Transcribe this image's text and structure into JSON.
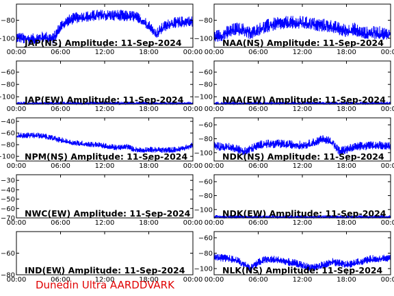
{
  "footer": "Dunedin Ultra AARDDVARK",
  "colors": {
    "trace": "#0000ff",
    "footer": "#e00000",
    "axis": "#000000"
  },
  "chart_data": [
    {
      "type": "line",
      "title": "JAP(NS) Amplitude: 11-Sep-2024",
      "xlabel": "",
      "ylabel": "",
      "x_ticks": [
        "00:00",
        "06:00",
        "12:00",
        "18:00",
        "00:00"
      ],
      "xlim": [
        0,
        24
      ],
      "y_ticks": [
        -80,
        -100
      ],
      "ylim": [
        -110,
        -62
      ],
      "series": [
        {
          "x": [
            0,
            1,
            2,
            3,
            4,
            5,
            6,
            7,
            8,
            9,
            10,
            11,
            12,
            13,
            14,
            15,
            16,
            17,
            18,
            19,
            20,
            21,
            22,
            23,
            24
          ],
          "values": [
            -97,
            -99,
            -100,
            -98,
            -97,
            -99,
            -85,
            -79,
            -76,
            -75,
            -74,
            -73,
            -73,
            -73,
            -73,
            -74,
            -74,
            -78,
            -84,
            -94,
            -86,
            -82,
            -81,
            -80,
            -80
          ]
        }
      ],
      "noise_amp": 5
    },
    {
      "type": "line",
      "title": "NAA(NS) Amplitude: 11-Sep-2024",
      "xlabel": "",
      "ylabel": "",
      "x_ticks": [
        "00:00",
        "06:00",
        "12:00",
        "18:00",
        "00:00"
      ],
      "xlim": [
        0,
        24
      ],
      "y_ticks": [
        -80,
        -100
      ],
      "ylim": [
        -110,
        -62
      ],
      "series": [
        {
          "x": [
            0,
            1,
            2,
            3,
            4,
            5,
            6,
            7,
            8,
            9,
            10,
            11,
            12,
            13,
            14,
            15,
            16,
            17,
            18,
            19,
            20,
            21,
            22,
            23,
            24
          ],
          "values": [
            -97,
            -95,
            -91,
            -88,
            -89,
            -93,
            -89,
            -85,
            -83,
            -82,
            -81,
            -81,
            -81,
            -82,
            -83,
            -84,
            -85,
            -88,
            -90,
            -88,
            -92,
            -93,
            -92,
            -93,
            -94
          ]
        }
      ],
      "noise_amp": 6
    },
    {
      "type": "line",
      "title": "JAP(EW) Amplitude: 11-Sep-2024",
      "xlabel": "",
      "ylabel": "",
      "x_ticks": [
        "00:00",
        "06:00",
        "12:00",
        "18:00",
        "00:00"
      ],
      "xlim": [
        0,
        24
      ],
      "y_ticks": [
        -60,
        -80,
        -100
      ],
      "ylim": [
        -112,
        -42
      ],
      "series": [
        {
          "x": [
            0,
            24
          ],
          "values": [
            -110,
            -110
          ]
        }
      ],
      "noise_amp": 2
    },
    {
      "type": "line",
      "title": "NAA(EW) Amplitude: 11-Sep-2024",
      "xlabel": "",
      "ylabel": "",
      "x_ticks": [
        "00:00",
        "06:00",
        "12:00",
        "18:00",
        "00:00"
      ],
      "xlim": [
        0,
        24
      ],
      "y_ticks": [
        -60,
        -80,
        -100
      ],
      "ylim": [
        -112,
        -42
      ],
      "series": [
        {
          "x": [
            0,
            24
          ],
          "values": [
            -110,
            -110
          ]
        }
      ],
      "noise_amp": 2
    },
    {
      "type": "line",
      "title": "NPM(NS) Amplitude: 11-Sep-2024",
      "xlabel": "",
      "ylabel": "",
      "x_ticks": [
        "00:00",
        "06:00",
        "12:00",
        "18:00",
        "00:00"
      ],
      "xlim": [
        0,
        24
      ],
      "y_ticks": [
        -40,
        -60,
        -80,
        -100
      ],
      "ylim": [
        -108,
        -34
      ],
      "series": [
        {
          "x": [
            0,
            1,
            2,
            3,
            4,
            5,
            6,
            7,
            8,
            9,
            10,
            11,
            12,
            13,
            14,
            15,
            16,
            17,
            18,
            19,
            20,
            21,
            22,
            23,
            24
          ],
          "values": [
            -63,
            -63,
            -63,
            -63,
            -65,
            -68,
            -71,
            -74,
            -76,
            -77,
            -78,
            -79,
            -81,
            -83,
            -84,
            -82,
            -87,
            -88,
            -87,
            -88,
            -88,
            -88,
            -87,
            -84,
            -80
          ]
        }
      ],
      "noise_amp": 4
    },
    {
      "type": "line",
      "title": "NDK(NS) Amplitude: 11-Sep-2024",
      "xlabel": "",
      "ylabel": "",
      "x_ticks": [
        "00:00",
        "06:00",
        "12:00",
        "18:00",
        "00:00"
      ],
      "xlim": [
        0,
        24
      ],
      "y_ticks": [
        -60,
        -80,
        -100
      ],
      "ylim": [
        -112,
        -50
      ],
      "series": [
        {
          "x": [
            0,
            1,
            2,
            3,
            4,
            5,
            6,
            7,
            8,
            9,
            10,
            11,
            12,
            13,
            14,
            15,
            16,
            17,
            18,
            19,
            20,
            21,
            22,
            23,
            24
          ],
          "values": [
            -88,
            -90,
            -91,
            -92,
            -97,
            -93,
            -88,
            -86,
            -86,
            -86,
            -87,
            -87,
            -88,
            -86,
            -82,
            -79,
            -83,
            -96,
            -94,
            -91,
            -89,
            -89,
            -88,
            -88,
            -89
          ]
        }
      ],
      "noise_amp": 5
    },
    {
      "type": "line",
      "title": "NWC(EW) Amplitude: 11-Sep-2024",
      "xlabel": "",
      "ylabel": "",
      "x_ticks": [
        "00:00",
        "06:00",
        "12:00",
        "18:00",
        "00:00"
      ],
      "xlim": [
        0,
        24
      ],
      "y_ticks": [
        -30,
        -40,
        -50,
        -60,
        -70
      ],
      "ylim": [
        -70,
        -24
      ],
      "series": []
    },
    {
      "type": "line",
      "title": "NDK(EW) Amplitude: 11-Sep-2024",
      "xlabel": "",
      "ylabel": "",
      "x_ticks": [
        "00:00",
        "06:00",
        "12:00",
        "18:00",
        "00:00"
      ],
      "xlim": [
        0,
        24
      ],
      "y_ticks": [
        -60,
        -80,
        -100
      ],
      "ylim": [
        -112,
        -50
      ],
      "series": [
        {
          "x": [
            0,
            24
          ],
          "values": [
            -110,
            -110
          ]
        }
      ],
      "noise_amp": 2
    },
    {
      "type": "line",
      "title": "IND(EW) Amplitude: 11-Sep-2024",
      "xlabel": "",
      "ylabel": "",
      "x_ticks": [
        "00:00",
        "06:00",
        "12:00",
        "18:00",
        "00:00"
      ],
      "xlim": [
        0,
        24
      ],
      "y_ticks": [
        -60,
        -80
      ],
      "ylim": [
        -80,
        -40
      ],
      "series": []
    },
    {
      "type": "line",
      "title": "NLK(NS) Amplitude: 11-Sep-2024",
      "xlabel": "",
      "ylabel": "",
      "x_ticks": [
        "00:00",
        "06:00",
        "12:00",
        "18:00",
        "00:00"
      ],
      "xlim": [
        0,
        24
      ],
      "y_ticks": [
        -60,
        -80,
        -100
      ],
      "ylim": [
        -108,
        -52
      ],
      "series": [
        {
          "x": [
            0,
            1,
            2,
            3,
            4,
            5,
            6,
            7,
            8,
            9,
            10,
            11,
            12,
            13,
            14,
            15,
            16,
            17,
            18,
            19,
            20,
            21,
            22,
            23,
            24
          ],
          "values": [
            -84,
            -85,
            -86,
            -88,
            -93,
            -98,
            -91,
            -87,
            -87,
            -88,
            -90,
            -92,
            -95,
            -97,
            -96,
            -94,
            -90,
            -92,
            -94,
            -92,
            -90,
            -87,
            -86,
            -85,
            -85
          ]
        }
      ],
      "noise_amp": 4
    }
  ]
}
